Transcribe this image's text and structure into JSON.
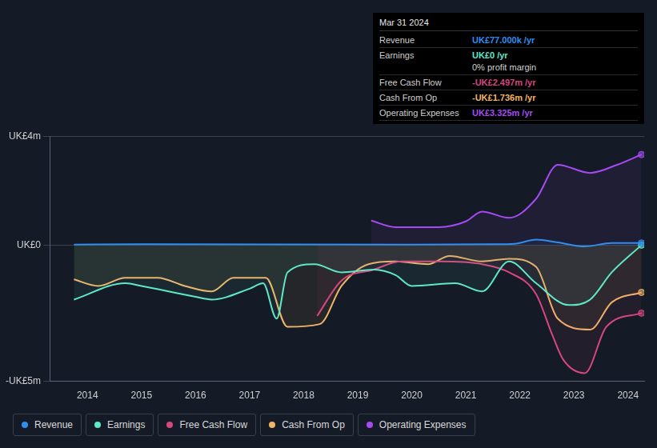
{
  "chart_data": {
    "type": "line",
    "xlim": [
      2013.3,
      2024.3
    ],
    "xticks": [
      2014,
      2015,
      2016,
      2017,
      2018,
      2019,
      2020,
      2021,
      2022,
      2023,
      2024
    ],
    "ylim": [
      -5,
      4
    ],
    "yticks": [
      {
        "value": -5,
        "label": "-UK£5m"
      },
      {
        "value": 0,
        "label": "UK£0"
      },
      {
        "value": 4,
        "label": "UK£4m"
      }
    ],
    "grid": true,
    "legend": "bottom",
    "series": [
      {
        "name": "Revenue",
        "color": "#2f8ff0",
        "x": [
          2013.75,
          2015,
          2020,
          2021.5,
          2021.9,
          2022.3,
          2022.7,
          2023.2,
          2023.7,
          2024.25
        ],
        "values": [
          0.02,
          0.03,
          0.02,
          0.03,
          0.05,
          0.2,
          0.1,
          -0.05,
          0.08,
          0.077
        ]
      },
      {
        "name": "Earnings",
        "color": "#5ee8c8",
        "x": [
          2013.75,
          2014.7,
          2015,
          2016,
          2016.3,
          2017,
          2017.25,
          2017.5,
          2017.7,
          2018.2,
          2018.7,
          2019.3,
          2019.7,
          2020,
          2020.8,
          2021.3,
          2021.8,
          2022.3,
          2022.9,
          2023.3,
          2023.7,
          2024.25
        ],
        "values": [
          -2.0,
          -1.4,
          -1.5,
          -1.9,
          -2.0,
          -1.6,
          -1.4,
          -2.7,
          -1.0,
          -0.7,
          -1.0,
          -0.9,
          -1.1,
          -1.5,
          -1.4,
          -1.7,
          -0.6,
          -1.4,
          -2.2,
          -2.0,
          -1.0,
          0
        ]
      },
      {
        "name": "Free Cash Flow",
        "color": "#d6467f",
        "x": [
          2018.25,
          2018.7,
          2019.3,
          2019.8,
          2020.5,
          2021.3,
          2021.8,
          2022.3,
          2022.6,
          2022.8,
          2023.2,
          2023.6,
          2024.25
        ],
        "values": [
          -2.6,
          -1.3,
          -0.9,
          -0.6,
          -0.6,
          -0.7,
          -1.0,
          -1.8,
          -3.3,
          -4.2,
          -4.7,
          -3.0,
          -2.497
        ]
      },
      {
        "name": "Cash From Op",
        "color": "#f1b567",
        "x": [
          2013.75,
          2014.2,
          2014.7,
          2015.3,
          2015.8,
          2016.3,
          2016.7,
          2017.3,
          2017.7,
          2018.3,
          2018.7,
          2019.2,
          2019.7,
          2020.3,
          2020.7,
          2021.3,
          2021.8,
          2022.3,
          2022.7,
          2023.3,
          2023.7,
          2024.25
        ],
        "values": [
          -1.26,
          -1.5,
          -1.2,
          -1.2,
          -1.5,
          -1.7,
          -1.2,
          -1.2,
          -3.0,
          -2.9,
          -1.5,
          -0.7,
          -0.6,
          -0.7,
          -0.4,
          -0.6,
          -0.5,
          -0.8,
          -2.7,
          -3.1,
          -2.1,
          -1.736
        ]
      },
      {
        "name": "Operating Expenses",
        "color": "#a64bf4",
        "x": [
          2019.25,
          2019.7,
          2020.5,
          2021,
          2021.3,
          2021.8,
          2022.3,
          2022.7,
          2023.3,
          2023.8,
          2024.25
        ],
        "values": [
          0.9,
          0.66,
          0.66,
          0.87,
          1.23,
          1.0,
          1.7,
          2.95,
          2.65,
          2.95,
          3.325
        ]
      }
    ],
    "annotation": {
      "title": "Mar 31 2024",
      "rows": [
        {
          "label": "Revenue",
          "value": "UK£77.000k /yr"
        },
        {
          "label": "Earnings",
          "value": "UK£0 /yr",
          "note": "0% profit margin"
        },
        {
          "label": "Free Cash Flow",
          "value": "-UK£2.497m /yr"
        },
        {
          "label": "Cash From Op",
          "value": "-UK£1.736m /yr"
        },
        {
          "label": "Operating Expenses",
          "value": "UK£3.325m /yr"
        }
      ]
    }
  }
}
